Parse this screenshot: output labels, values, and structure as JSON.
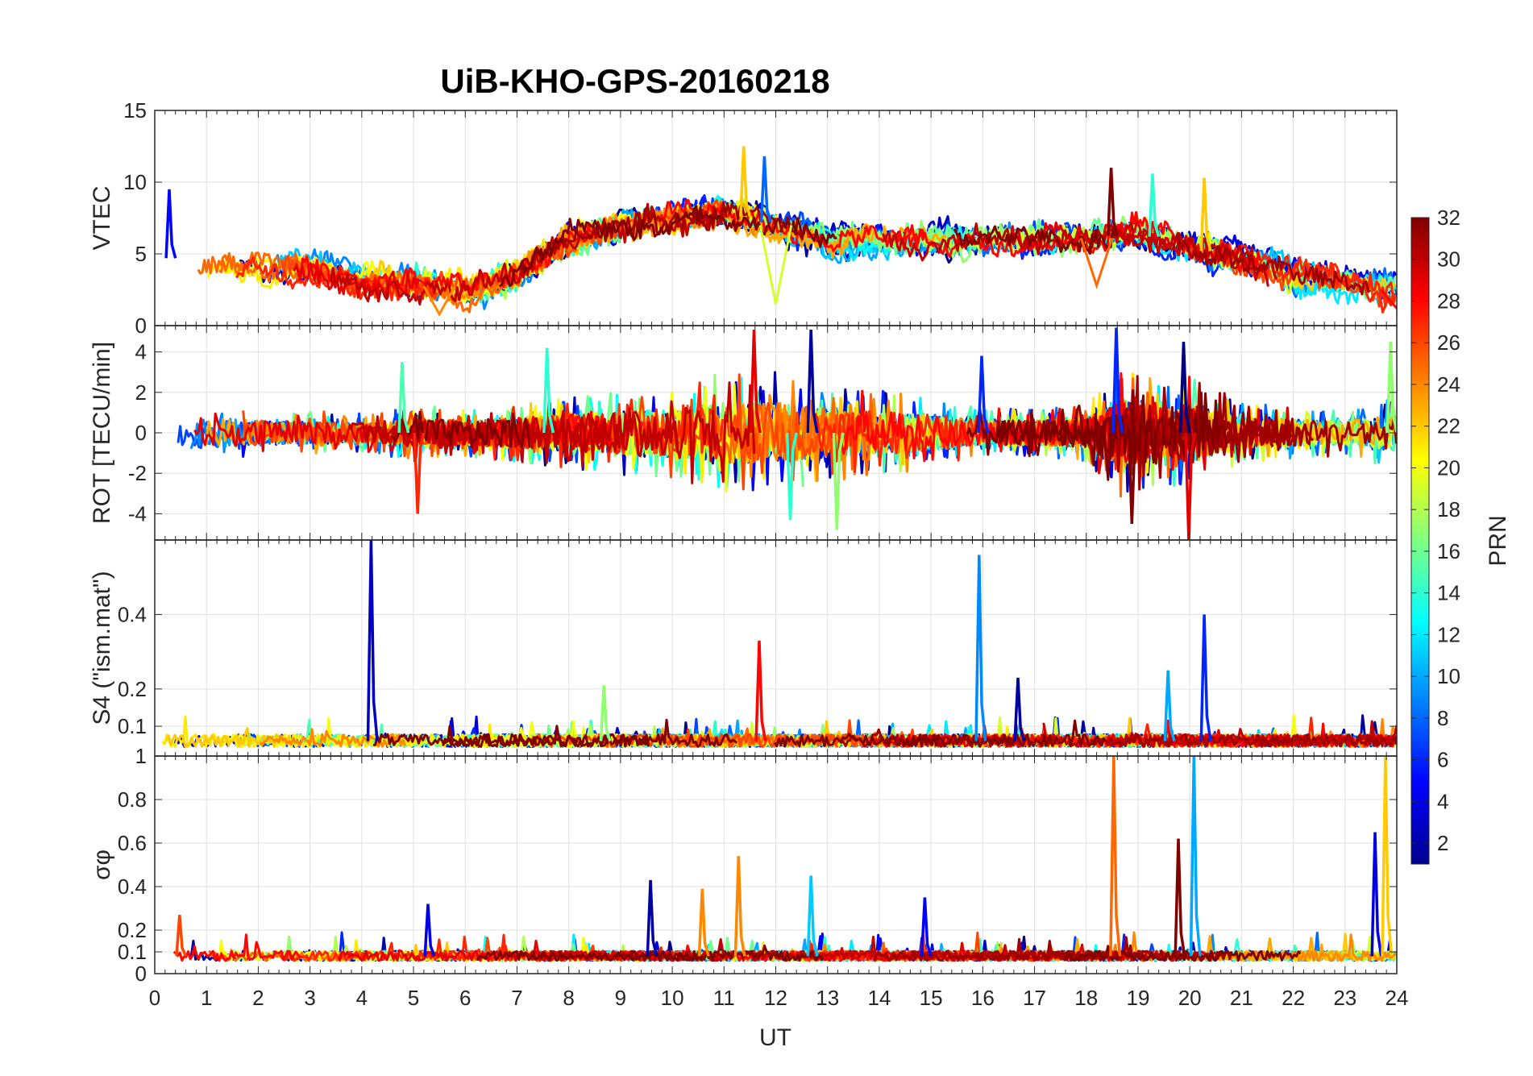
{
  "chart_data": {
    "title": "UiB-KHO-GPS-20160218",
    "type": "line",
    "colormap": "jet",
    "x": {
      "label": "UT",
      "range": [
        0,
        24
      ],
      "ticks": [
        0,
        1,
        2,
        3,
        4,
        5,
        6,
        7,
        8,
        9,
        10,
        11,
        12,
        13,
        14,
        15,
        16,
        17,
        18,
        19,
        20,
        21,
        22,
        23,
        24
      ],
      "tick_labels": [
        "0",
        "1",
        "2",
        "3",
        "4",
        "5",
        "6",
        "7",
        "8",
        "9",
        "10",
        "11",
        "12",
        "13",
        "14",
        "15",
        "16",
        "17",
        "18",
        "19",
        "20",
        "21",
        "22",
        "23",
        "24"
      ]
    },
    "grid": true,
    "colorbar": {
      "label": "PRN",
      "range": [
        1,
        32
      ],
      "ticks": [
        2,
        4,
        6,
        8,
        10,
        12,
        14,
        16,
        18,
        20,
        22,
        24,
        26,
        28,
        30,
        32
      ],
      "tick_labels": [
        "2",
        "4",
        "6",
        "8",
        "10",
        "12",
        "14",
        "16",
        "18",
        "20",
        "22",
        "24",
        "26",
        "28",
        "30",
        "32"
      ]
    },
    "panels": [
      {
        "ylabel": "VTEC",
        "ylim": [
          0,
          15
        ],
        "yticks": [
          0,
          5,
          10,
          15
        ],
        "ytick_labels": [
          "0",
          "5",
          "10",
          "15"
        ],
        "envelope": {
          "x": [
            0,
            1,
            2,
            3,
            4,
            5,
            6,
            7,
            8,
            9,
            10,
            11,
            12,
            13,
            14,
            15,
            16,
            17,
            18,
            19,
            20,
            21,
            22,
            23,
            24
          ],
          "y": [
            5,
            4,
            4,
            4,
            3,
            3,
            2.5,
            3.5,
            6,
            7,
            7.5,
            8,
            7,
            6,
            6,
            6,
            6,
            6,
            6,
            6.5,
            5.5,
            4.5,
            3.5,
            3,
            2.5
          ]
        },
        "peaks": [
          {
            "x": 0.3,
            "y": 9.5
          },
          {
            "x": 11.4,
            "y": 12.5
          },
          {
            "x": 11.8,
            "y": 11.8
          },
          {
            "x": 18.5,
            "y": 11
          },
          {
            "x": 19.3,
            "y": 10.6
          },
          {
            "x": 20.3,
            "y": 10.3
          }
        ],
        "dips": [
          {
            "x": 5.5,
            "y": 0.8
          },
          {
            "x": 12,
            "y": 1.5
          },
          {
            "x": 18.2,
            "y": 2.8
          },
          {
            "x": 24,
            "y": 1.2
          }
        ]
      },
      {
        "ylabel": "ROT [TECU/min]",
        "ylim": [
          -5.3,
          5.3
        ],
        "yticks": [
          -4,
          -2,
          0,
          2,
          4
        ],
        "ytick_labels": [
          "-4",
          "-2",
          "0",
          "2",
          "4"
        ],
        "envelope": {
          "x": [
            0,
            2,
            4,
            5,
            6,
            8,
            10,
            11,
            12,
            13,
            15,
            16,
            17,
            18,
            18.7,
            19.5,
            20,
            21,
            23,
            24
          ],
          "y": [
            1.5,
            1,
            0.8,
            1.2,
            1,
            1.5,
            2,
            2.5,
            2.5,
            2,
            1.5,
            1,
            1,
            1.2,
            2.8,
            2,
            2.5,
            1.2,
            1,
            1.5
          ]
        },
        "peaks": [
          {
            "x": 4.8,
            "y": 3.5
          },
          {
            "x": 5.1,
            "y": -4
          },
          {
            "x": 7.6,
            "y": 4.2
          },
          {
            "x": 11.6,
            "y": 5.1
          },
          {
            "x": 12.7,
            "y": 5.1
          },
          {
            "x": 12.3,
            "y": -4.3
          },
          {
            "x": 13.2,
            "y": -4.8
          },
          {
            "x": 16,
            "y": 3.8
          },
          {
            "x": 18.6,
            "y": 5.2
          },
          {
            "x": 18.9,
            "y": -4.5
          },
          {
            "x": 19.9,
            "y": 4.5
          },
          {
            "x": 20,
            "y": -5.3
          },
          {
            "x": 23.9,
            "y": 4.5
          }
        ]
      },
      {
        "ylabel": "S4 (\"ism.mat\")",
        "ylim": [
          0.02,
          0.6
        ],
        "yticks": [
          0.1,
          0.2,
          0.4
        ],
        "ytick_labels": [
          "0.1",
          "0.2",
          "0.4"
        ],
        "baseline": 0.06,
        "peaks": [
          {
            "x": 4.2,
            "y": 0.6
          },
          {
            "x": 8.7,
            "y": 0.21
          },
          {
            "x": 11.7,
            "y": 0.33
          },
          {
            "x": 15.95,
            "y": 0.56
          },
          {
            "x": 16.7,
            "y": 0.23
          },
          {
            "x": 19.6,
            "y": 0.25
          },
          {
            "x": 20.3,
            "y": 0.4
          }
        ]
      },
      {
        "ylabel": "σφ",
        "ylim": [
          0,
          1
        ],
        "yticks": [
          0,
          0.1,
          0.2,
          0.4,
          0.6,
          0.8,
          1
        ],
        "ytick_labels": [
          "0",
          "0.1",
          "0.2",
          "0.4",
          "0.6",
          "0.8",
          "1"
        ],
        "baseline": 0.08,
        "peaks": [
          {
            "x": 0.5,
            "y": 0.27
          },
          {
            "x": 5.3,
            "y": 0.32
          },
          {
            "x": 9.6,
            "y": 0.43
          },
          {
            "x": 10.6,
            "y": 0.39
          },
          {
            "x": 11.3,
            "y": 0.54
          },
          {
            "x": 12.7,
            "y": 0.45
          },
          {
            "x": 14.9,
            "y": 0.35
          },
          {
            "x": 18.55,
            "y": 1
          },
          {
            "x": 19.8,
            "y": 0.62
          },
          {
            "x": 20.1,
            "y": 1
          },
          {
            "x": 23.6,
            "y": 0.65
          },
          {
            "x": 23.8,
            "y": 1
          }
        ]
      }
    ]
  }
}
